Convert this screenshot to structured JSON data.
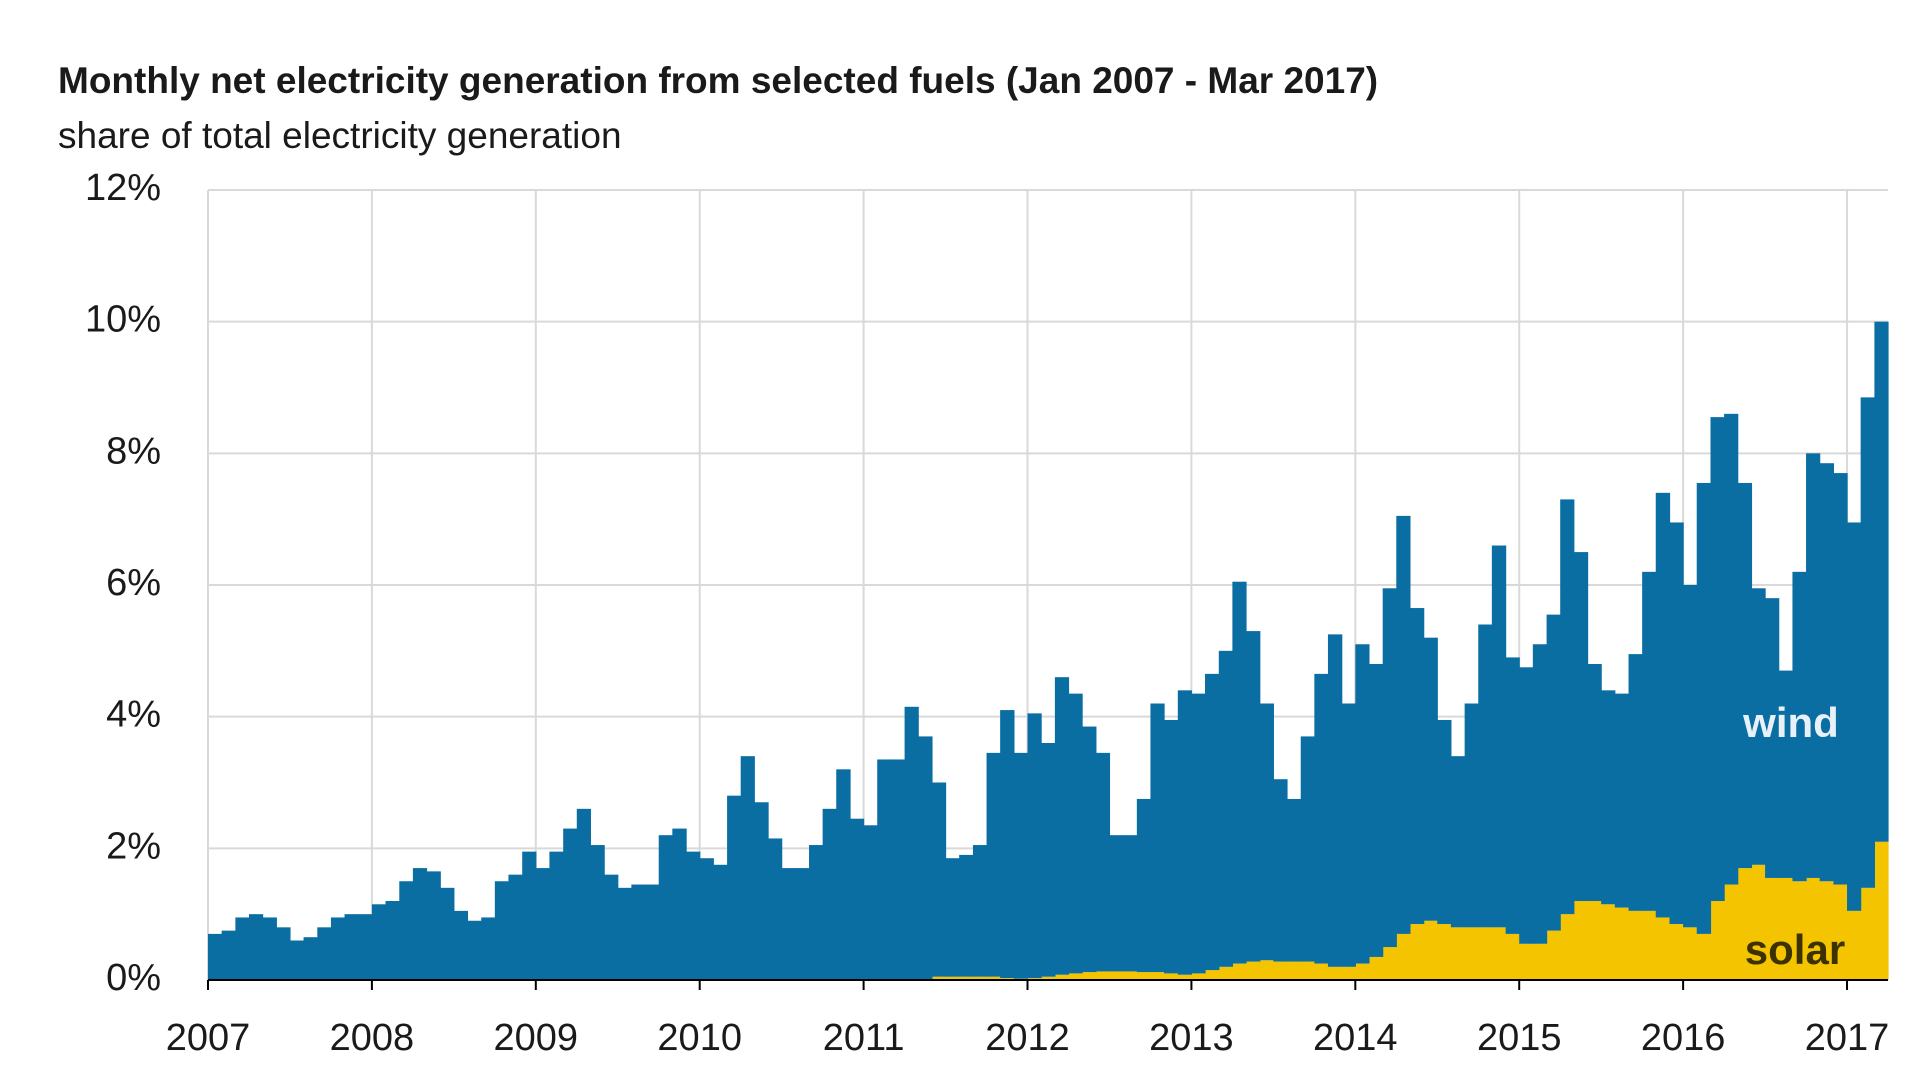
{
  "chart_data": {
    "type": "stacked-step-area",
    "title": "Monthly net electricity generation from selected fuels (Jan 2007 - Mar 2017)",
    "subtitle": "share of total electricity generation",
    "x": [
      2007.0,
      2007.083,
      2007.167,
      2007.25,
      2007.333,
      2007.417,
      2007.5,
      2007.583,
      2007.667,
      2007.75,
      2007.833,
      2007.917,
      2008.0,
      2008.083,
      2008.167,
      2008.25,
      2008.333,
      2008.417,
      2008.5,
      2008.583,
      2008.667,
      2008.75,
      2008.833,
      2008.917,
      2009.0,
      2009.083,
      2009.167,
      2009.25,
      2009.333,
      2009.417,
      2009.5,
      2009.583,
      2009.667,
      2009.75,
      2009.833,
      2009.917,
      2010.0,
      2010.083,
      2010.167,
      2010.25,
      2010.333,
      2010.417,
      2010.5,
      2010.583,
      2010.667,
      2010.75,
      2010.833,
      2010.917,
      2011.0,
      2011.083,
      2011.167,
      2011.25,
      2011.333,
      2011.417,
      2011.5,
      2011.583,
      2011.667,
      2011.75,
      2011.833,
      2011.917,
      2012.0,
      2012.083,
      2012.167,
      2012.25,
      2012.333,
      2012.417,
      2012.5,
      2012.583,
      2012.667,
      2012.75,
      2012.833,
      2012.917,
      2013.0,
      2013.083,
      2013.167,
      2013.25,
      2013.333,
      2013.417,
      2013.5,
      2013.583,
      2013.667,
      2013.75,
      2013.833,
      2013.917,
      2014.0,
      2014.083,
      2014.167,
      2014.25,
      2014.333,
      2014.417,
      2014.5,
      2014.583,
      2014.667,
      2014.75,
      2014.833,
      2014.917,
      2015.0,
      2015.083,
      2015.167,
      2015.25,
      2015.333,
      2015.417,
      2015.5,
      2015.583,
      2015.667,
      2015.75,
      2015.833,
      2015.917,
      2016.0,
      2016.083,
      2016.167,
      2016.25,
      2016.333,
      2016.417,
      2016.5,
      2016.583,
      2016.667,
      2016.75,
      2016.833,
      2016.917,
      2017.0,
      2017.083,
      2017.167
    ],
    "series": [
      {
        "name": "solar",
        "color": "#f5c400",
        "label_color": "#3b3200",
        "values": [
          0,
          0,
          0,
          0,
          0,
          0,
          0,
          0,
          0,
          0,
          0,
          0,
          0,
          0,
          0,
          0,
          0,
          0,
          0,
          0,
          0,
          0,
          0,
          0,
          0,
          0,
          0,
          0,
          0,
          0,
          0,
          0,
          0,
          0,
          0,
          0,
          0,
          0,
          0,
          0,
          0,
          0,
          0,
          0,
          0,
          0,
          0,
          0,
          0,
          0,
          0,
          0,
          0,
          0.05,
          0.05,
          0.05,
          0.05,
          0.05,
          0.03,
          0.02,
          0.03,
          0.05,
          0.08,
          0.1,
          0.12,
          0.13,
          0.13,
          0.13,
          0.12,
          0.12,
          0.1,
          0.08,
          0.1,
          0.15,
          0.2,
          0.25,
          0.28,
          0.3,
          0.28,
          0.28,
          0.28,
          0.25,
          0.2,
          0.2,
          0.25,
          0.35,
          0.5,
          0.7,
          0.85,
          0.9,
          0.85,
          0.8,
          0.8,
          0.8,
          0.8,
          0.7,
          0.55,
          0.55,
          0.75,
          1.0,
          1.2,
          1.2,
          1.15,
          1.1,
          1.05,
          1.05,
          0.95,
          0.85,
          0.8,
          0.7,
          1.2,
          1.45,
          1.7,
          1.75,
          1.55,
          1.55,
          1.5,
          1.55,
          1.5,
          1.45,
          1.05,
          1.4,
          2.1
        ]
      },
      {
        "name": "wind",
        "color": "#0b6ea3",
        "label_color": "#e8f1f7",
        "values": [
          0.7,
          0.75,
          0.95,
          1.0,
          0.95,
          0.8,
          0.6,
          0.65,
          0.8,
          0.95,
          1.0,
          1.0,
          1.15,
          1.2,
          1.5,
          1.7,
          1.65,
          1.4,
          1.05,
          0.9,
          0.95,
          1.5,
          1.6,
          1.95,
          1.7,
          1.95,
          2.3,
          2.6,
          2.05,
          1.6,
          1.4,
          1.45,
          1.45,
          2.2,
          2.3,
          1.95,
          1.85,
          1.75,
          2.8,
          3.4,
          2.7,
          2.15,
          1.7,
          1.7,
          2.05,
          2.6,
          3.2,
          2.45,
          2.35,
          3.35,
          3.35,
          4.15,
          3.7,
          2.95,
          1.8,
          1.85,
          2.0,
          3.4,
          4.07,
          3.43,
          4.02,
          3.55,
          4.52,
          4.25,
          3.73,
          3.32,
          2.07,
          2.07,
          2.63,
          4.08,
          3.85,
          4.32,
          4.25,
          4.5,
          4.8,
          5.8,
          5.02,
          3.9,
          2.77,
          2.47,
          3.42,
          4.4,
          5.05,
          4.0,
          4.85,
          4.45,
          5.45,
          6.35,
          4.8,
          4.3,
          3.1,
          2.6,
          3.4,
          4.6,
          5.8,
          4.2,
          4.2,
          4.55,
          4.8,
          6.3,
          5.3,
          3.6,
          3.25,
          3.25,
          3.9,
          5.15,
          6.45,
          6.1,
          5.2,
          6.85,
          7.35,
          7.15,
          5.85,
          4.2,
          4.25,
          3.15,
          4.7,
          6.45,
          6.35,
          6.25,
          5.9,
          7.45,
          7.9
        ]
      }
    ],
    "xlim": [
      2007,
      2017.25
    ],
    "xticks": [
      2007,
      2008,
      2009,
      2010,
      2011,
      2012,
      2013,
      2014,
      2015,
      2016,
      2017
    ],
    "ylim": [
      0,
      12
    ],
    "yticks": [
      {
        "value": 0,
        "label": "0%"
      },
      {
        "value": 2,
        "label": "2%"
      },
      {
        "value": 4,
        "label": "4%"
      },
      {
        "value": 6,
        "label": "6%"
      },
      {
        "value": 8,
        "label": "8%"
      },
      {
        "value": 10,
        "label": "10%"
      },
      {
        "value": 12,
        "label": "12%"
      }
    ],
    "grid": true
  }
}
